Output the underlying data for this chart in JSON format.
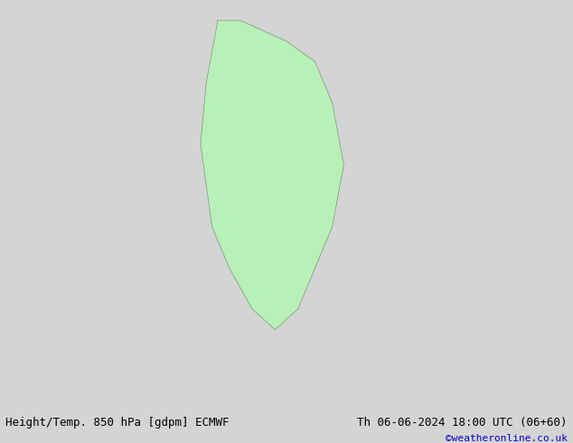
{
  "title_left": "Height/Temp. 850 hPa [gdpm] ECMWF",
  "title_right": "Th 06-06-2024 18:00 UTC (06+60)",
  "copyright": "©weatheronline.co.uk",
  "bg_color": "#d8d8d8",
  "land_color": "#b8f0b8",
  "border_color": "#888888",
  "map_extent": [
    -100,
    40,
    -80,
    15
  ],
  "footer_font_size": 9,
  "footer_color_left": "#000000",
  "footer_color_right": "#000000",
  "copyright_color": "#0000cc",
  "geopotential_color": "#000000",
  "geopotential_linewidth": 2.0,
  "temp_positive_color": "#cc0000",
  "temp_15_color": "#ff8c00",
  "temp_zero_color": "#00aaaa",
  "temp_negative_color": "#00aacc",
  "temp_blue_color": "#4488ff",
  "temp_green_color": "#88cc00",
  "wind_color": "#ff00ff"
}
